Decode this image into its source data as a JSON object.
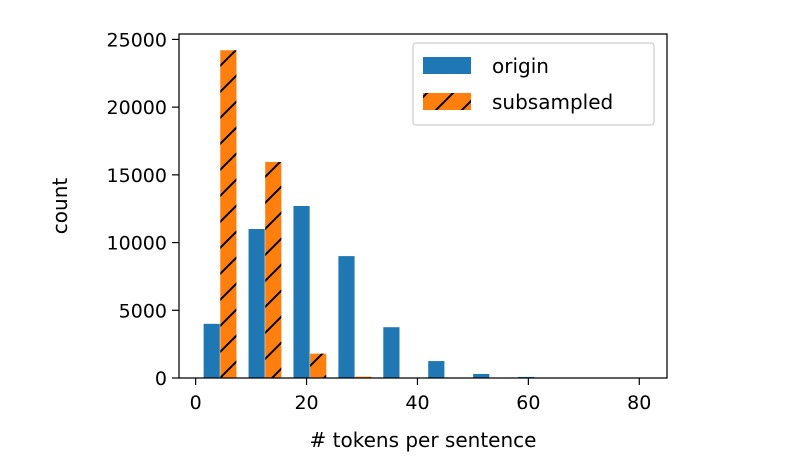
{
  "chart_data": {
    "type": "bar",
    "xlabel": "# tokens per sentence",
    "ylabel": "count",
    "xlim": [
      -3,
      85
    ],
    "ylim": [
      0,
      25400
    ],
    "xticks": [
      0,
      20,
      40,
      60,
      80
    ],
    "yticks": [
      0,
      5000,
      10000,
      15000,
      20000,
      25000
    ],
    "grid": false,
    "legend_placement": "upper right",
    "bin_width": 8.1,
    "series": [
      {
        "name": "origin",
        "color": "#1f77b4",
        "hatch": "none",
        "bars": [
          {
            "x": 2.9,
            "value": 4000
          },
          {
            "x": 11.0,
            "value": 11000
          },
          {
            "x": 19.1,
            "value": 12700
          },
          {
            "x": 27.2,
            "value": 9000
          },
          {
            "x": 35.3,
            "value": 3750
          },
          {
            "x": 43.4,
            "value": 1250
          },
          {
            "x": 51.5,
            "value": 300
          },
          {
            "x": 59.6,
            "value": 80
          },
          {
            "x": 67.7,
            "value": 20
          },
          {
            "x": 75.8,
            "value": 5
          }
        ]
      },
      {
        "name": "subsampled",
        "color": "#ff7f0e",
        "hatch": "/",
        "bars": [
          {
            "x": 5.9,
            "value": 24200
          },
          {
            "x": 14.0,
            "value": 15950
          },
          {
            "x": 22.1,
            "value": 1800
          },
          {
            "x": 30.2,
            "value": 100
          },
          {
            "x": 38.3,
            "value": 10
          },
          {
            "x": 46.4,
            "value": 0
          },
          {
            "x": 54.5,
            "value": 0
          },
          {
            "x": 62.6,
            "value": 0
          },
          {
            "x": 70.7,
            "value": 0
          },
          {
            "x": 78.8,
            "value": 0
          }
        ]
      }
    ]
  }
}
